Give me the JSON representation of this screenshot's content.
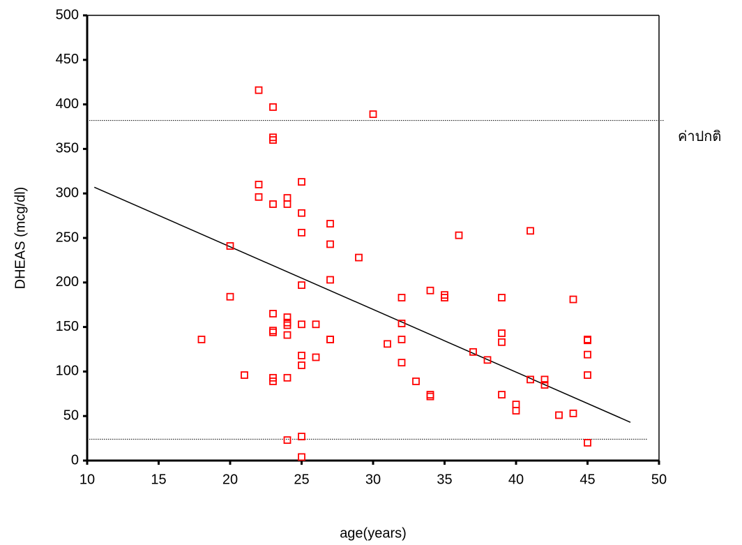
{
  "chart_data": {
    "type": "scatter",
    "x_label": "age(years)",
    "y_label": "DHEAS (mcg/dl)",
    "x": [
      18,
      20,
      20,
      21,
      22,
      22,
      22,
      23,
      23,
      23,
      23,
      23,
      23,
      23,
      23,
      23,
      24,
      24,
      24,
      24,
      24,
      24,
      24,
      24,
      25,
      25,
      25,
      25,
      25,
      25,
      25,
      25,
      25,
      26,
      26,
      27,
      27,
      27,
      27,
      27,
      29,
      30,
      31,
      32,
      32,
      32,
      32,
      33,
      34,
      34,
      34,
      35,
      35,
      36,
      37,
      38,
      39,
      39,
      39,
      39,
      40,
      40,
      41,
      41,
      42,
      42,
      43,
      44,
      44,
      45,
      45,
      45,
      45,
      45
    ],
    "values": [
      136,
      241,
      184,
      96,
      416,
      310,
      296,
      397,
      363,
      360,
      288,
      165,
      146,
      144,
      93,
      89,
      295,
      288,
      161,
      155,
      152,
      141,
      93,
      23,
      313,
      278,
      256,
      197,
      153,
      118,
      107,
      27,
      4,
      153,
      116,
      266,
      243,
      203,
      136,
      136,
      228,
      389,
      131,
      183,
      154,
      136,
      110,
      89,
      191,
      74,
      72,
      186,
      183,
      253,
      122,
      113,
      183,
      143,
      133,
      74,
      63,
      56,
      258,
      91,
      91,
      85,
      51,
      181,
      53,
      136,
      135,
      119,
      96,
      20
    ],
    "color": "#ff0000",
    "trend_line": {
      "x": [
        10.5,
        48
      ],
      "y": [
        307,
        43
      ],
      "color": "#000000"
    },
    "reference_lines": {
      "values": [
        382,
        24
      ],
      "label": "ค่าปกติ"
    },
    "xlim": [
      10,
      50
    ],
    "xticks": [
      10,
      15,
      20,
      25,
      30,
      35,
      40,
      45,
      50
    ],
    "ylim": [
      0,
      500
    ],
    "yticks": [
      0,
      50,
      100,
      150,
      200,
      250,
      300,
      350,
      400,
      450,
      500
    ],
    "grid": false
  }
}
